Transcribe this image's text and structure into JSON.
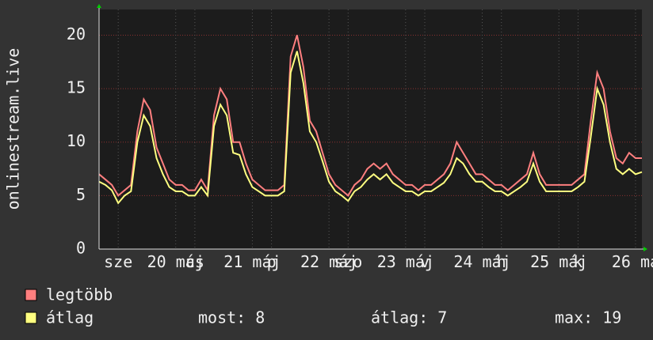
{
  "chart_data": {
    "type": "line",
    "y_label": "onlinestream.live",
    "x": [
      0,
      2,
      4,
      6,
      8,
      10,
      12,
      14,
      16,
      18,
      20,
      22,
      24,
      26,
      28,
      30,
      32,
      34,
      36,
      38,
      40,
      42,
      44,
      46,
      48,
      50,
      52,
      54,
      56,
      58,
      60,
      62,
      64,
      66,
      68,
      70,
      72,
      74,
      76,
      78,
      80,
      82,
      84,
      86,
      88,
      90,
      92,
      94,
      96,
      98,
      100,
      102,
      104,
      106,
      108,
      110,
      112,
      114,
      116,
      118,
      120,
      122,
      124,
      126,
      128,
      130,
      132,
      134,
      136,
      138,
      140,
      142,
      144,
      146,
      148,
      150,
      152,
      154,
      156,
      158,
      160,
      162,
      164,
      166,
      168,
      170
    ],
    "series": [
      {
        "name": "legtöbb",
        "color": "#ff7f7f",
        "values": [
          7,
          6.5,
          6,
          5,
          5.5,
          6,
          11,
          14,
          13,
          9.5,
          8,
          6.5,
          6,
          6,
          5.5,
          5.5,
          6.5,
          5.5,
          12.5,
          15,
          14,
          10,
          10,
          8,
          6.5,
          6,
          5.5,
          5.5,
          5.5,
          6,
          18,
          20,
          17,
          12,
          11,
          9,
          7,
          6,
          5.5,
          5,
          6,
          6.5,
          7.5,
          8,
          7.5,
          8,
          7,
          6.5,
          6,
          6,
          5.5,
          6,
          6,
          6.5,
          7,
          8,
          10,
          9,
          8,
          7,
          7,
          6.5,
          6,
          6,
          5.5,
          6,
          6.5,
          7,
          9,
          7,
          6,
          6,
          6,
          6,
          6,
          6.5,
          7,
          12,
          16.5,
          15,
          11,
          8.5,
          8,
          9,
          8.5,
          8.5
        ]
      },
      {
        "name": "átlag",
        "color": "#ffff80",
        "values": [
          6.3,
          6,
          5.5,
          4.3,
          5,
          5.4,
          10,
          12.5,
          11.5,
          8.5,
          7,
          5.8,
          5.4,
          5.4,
          5,
          5,
          5.8,
          5,
          11.5,
          13.5,
          12.5,
          9,
          8.8,
          7,
          5.8,
          5.4,
          5,
          5,
          5,
          5.4,
          16.5,
          18.5,
          15.5,
          11,
          10,
          8.2,
          6.3,
          5.4,
          5,
          4.5,
          5.4,
          5.8,
          6.5,
          7,
          6.5,
          7,
          6.2,
          5.8,
          5.4,
          5.4,
          5,
          5.4,
          5.4,
          5.8,
          6.2,
          7,
          8.5,
          8,
          7,
          6.3,
          6.3,
          5.8,
          5.4,
          5.4,
          5,
          5.4,
          5.8,
          6.3,
          8,
          6.3,
          5.4,
          5.4,
          5.4,
          5.4,
          5.4,
          5.8,
          6.3,
          10.5,
          15,
          13.5,
          10,
          7.5,
          7,
          7.5,
          7,
          7.2
        ]
      }
    ],
    "xlim": [
      0,
      170
    ],
    "ylim": [
      0,
      22.4
    ],
    "xticks": [
      {
        "value": 6,
        "label": "sze"
      },
      {
        "value": 24,
        "label": "20 máj"
      },
      {
        "value": 30,
        "label": "cs"
      },
      {
        "value": 48,
        "label": "21 máj"
      },
      {
        "value": 54,
        "label": "p"
      },
      {
        "value": 72,
        "label": "22 máj"
      },
      {
        "value": 78,
        "label": "szo"
      },
      {
        "value": 96,
        "label": "23 máj"
      },
      {
        "value": 102,
        "label": "v"
      },
      {
        "value": 120,
        "label": "24 máj"
      },
      {
        "value": 126,
        "label": "h"
      },
      {
        "value": 144,
        "label": "25 máj"
      },
      {
        "value": 150,
        "label": "k"
      },
      {
        "value": 168,
        "label": "26 má"
      }
    ],
    "yticks": [
      0,
      5,
      10,
      15,
      20
    ],
    "grid": true,
    "stats": [
      "most: 8",
      "átlag: 7",
      "max: 19"
    ]
  }
}
